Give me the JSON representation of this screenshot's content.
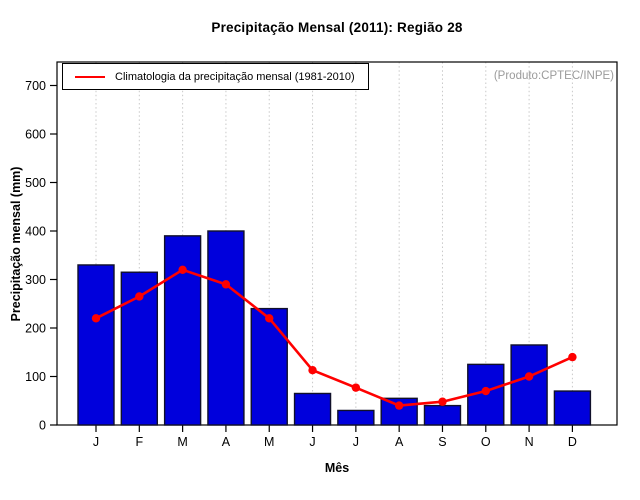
{
  "chart_data": {
    "type": "bar",
    "title": "Precipitação Mensal (2011): Região 28",
    "xlabel": "Mês",
    "ylabel": "Precipitação mensal (mm)",
    "categories": [
      "J",
      "F",
      "M",
      "A",
      "M",
      "J",
      "J",
      "A",
      "S",
      "O",
      "N",
      "D"
    ],
    "series": [
      {
        "name": "Precipitação Mensal (2011)",
        "type": "bar",
        "color": "#0000DC",
        "values": [
          330,
          315,
          390,
          400,
          240,
          65,
          30,
          55,
          40,
          125,
          165,
          70
        ]
      },
      {
        "name": "Climatologia da precipitação mensal (1981-2010)",
        "type": "line",
        "color": "#FF0000",
        "values": [
          220,
          265,
          320,
          290,
          220,
          113,
          77,
          40,
          48,
          70,
          100,
          140
        ]
      }
    ],
    "yticks": [
      0,
      100,
      200,
      300,
      400,
      500,
      600,
      700
    ],
    "ylim": [
      0,
      700
    ],
    "grid": "vertical-dotted",
    "legend_position": "top-left",
    "annotation": "(Produto:CPTEC/INPE)"
  },
  "legend": {
    "label": "Climatologia da precipitação mensal (1981-2010)"
  },
  "colors": {
    "bar_fill": "#0000DC",
    "bar_border": "#10102a",
    "line": "#FF0000",
    "grid": "#c9c9c9",
    "axis": "#000000",
    "annotation_text": "#9b9b9b"
  }
}
